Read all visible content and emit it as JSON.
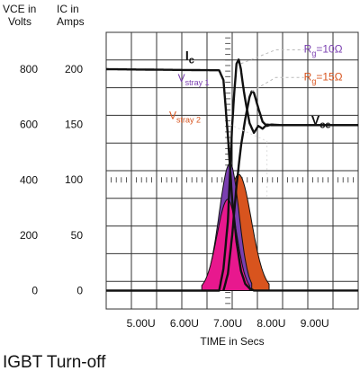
{
  "chart_data": {
    "type": "line",
    "title": "IGBT Turn-off",
    "xlabel": "TIME in Secs",
    "y_left_label": [
      "VCE in",
      "Volts"
    ],
    "y_right_label": [
      "IC in",
      "Amps"
    ],
    "x_unit": "µs",
    "xlim": [
      4.2,
      10.0
    ],
    "x_ticks": [
      5.0,
      6.0,
      7.0,
      8.0,
      9.0
    ],
    "x_tick_labels": [
      "5.00U",
      "6.00U",
      "7.00U",
      "8.00U",
      "9.00U"
    ],
    "vce_ticks": [
      0,
      200,
      400,
      600,
      800
    ],
    "vce_ylim": [
      -66.7,
      933.3
    ],
    "ic_ticks": [
      0,
      50,
      100,
      150,
      200
    ],
    "ic_ylim": [
      -16.7,
      233.3
    ],
    "grid": true,
    "series": [
      {
        "name": "Ic",
        "axis": "ic",
        "color": "#111111",
        "x": [
          4.2,
          6.8,
          6.9,
          7.0,
          7.1,
          7.2,
          7.3,
          7.4,
          7.5,
          7.6,
          7.7,
          7.8,
          7.9,
          8.0,
          10.0
        ],
        "y": [
          200,
          199,
          190,
          140,
          82,
          44,
          18,
          6,
          2,
          0,
          0,
          0,
          0,
          0,
          0
        ]
      },
      {
        "name": "Vce",
        "axis": "vce",
        "color": "#111111",
        "x": [
          4.2,
          6.8,
          6.9,
          7.0,
          7.05,
          7.1,
          7.15,
          7.2,
          7.25,
          7.3,
          7.35,
          7.4,
          7.5,
          7.6,
          7.7,
          7.8,
          7.9,
          8.0,
          10.0
        ],
        "y": [
          0,
          0,
          80,
          250,
          420,
          600,
          720,
          820,
          835,
          800,
          740,
          690,
          605,
          570,
          595,
          585,
          600,
          598,
          598
        ]
      },
      {
        "name": "Vce (Rg=15Ω)",
        "axis": "vce",
        "color": "#111111",
        "x": [
          6.9,
          7.0,
          7.1,
          7.2,
          7.3,
          7.4,
          7.5,
          7.55,
          7.6,
          7.7,
          7.8,
          7.9,
          8.0,
          8.2,
          10.0
        ],
        "y": [
          0,
          60,
          200,
          380,
          520,
          620,
          700,
          720,
          715,
          660,
          610,
          595,
          600,
          598,
          598
        ]
      }
    ],
    "shaded_regions": [
      {
        "label": "Vstray 1",
        "color": "#7a3fb0"
      },
      {
        "label": "Vstray 2",
        "color": "#d8541e"
      },
      {
        "label": "overlap",
        "color": "#e8188e"
      }
    ],
    "annotations": [
      {
        "text": "Ic",
        "base": "I",
        "sub": "c",
        "color": "#111111"
      },
      {
        "text": "Vstray 1",
        "base": "V",
        "sub": "stray 1",
        "color": "#7a3fb0"
      },
      {
        "text": "Vstray 2",
        "base": "V",
        "sub": "stray 2",
        "color": "#d8541e"
      },
      {
        "text": "Rg=10Ω",
        "base": "R",
        "sub": "g",
        "tail": "=10Ω",
        "color": "#7a3fb0"
      },
      {
        "text": "Rg=15Ω",
        "base": "R",
        "sub": "g",
        "tail": "=15Ω",
        "color": "#d8541e"
      },
      {
        "text": "Vce",
        "base": "V",
        "sub": "ce",
        "color": "#111111"
      }
    ]
  }
}
